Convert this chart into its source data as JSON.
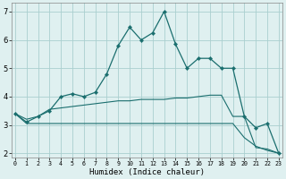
{
  "xlabel": "Humidex (Indice chaleur)",
  "bg_color": "#dff0f0",
  "grid_color": "#aacfcf",
  "line_color": "#1a6e6e",
  "hours": [
    0,
    1,
    2,
    3,
    4,
    5,
    6,
    7,
    8,
    9,
    10,
    11,
    12,
    13,
    14,
    15,
    16,
    17,
    18,
    19,
    20,
    21,
    22,
    23
  ],
  "line1": [
    3.4,
    3.1,
    3.3,
    3.5,
    4.0,
    4.1,
    4.0,
    4.15,
    4.8,
    5.8,
    6.45,
    6.0,
    6.25,
    7.0,
    5.85,
    5.0,
    5.35,
    5.35,
    5.0,
    5.0,
    3.3,
    2.9,
    3.05,
    2.0
  ],
  "line2": [
    3.4,
    3.2,
    3.3,
    3.55,
    3.6,
    3.65,
    3.7,
    3.75,
    3.8,
    3.85,
    3.85,
    3.9,
    3.9,
    3.9,
    3.95,
    3.95,
    4.0,
    4.05,
    4.05,
    3.3,
    3.3,
    2.2,
    2.15,
    2.0
  ],
  "line3": [
    3.4,
    3.05,
    3.05,
    3.05,
    3.05,
    3.05,
    3.05,
    3.05,
    3.05,
    3.05,
    3.05,
    3.05,
    3.05,
    3.05,
    3.05,
    3.05,
    3.05,
    3.05,
    3.05,
    3.05,
    2.55,
    2.25,
    2.1,
    2.0
  ],
  "yticks": [
    2,
    3,
    4,
    5,
    6,
    7
  ],
  "xticks": [
    0,
    1,
    2,
    3,
    4,
    5,
    6,
    7,
    8,
    9,
    10,
    11,
    12,
    13,
    14,
    15,
    16,
    17,
    18,
    19,
    20,
    21,
    22,
    23
  ]
}
